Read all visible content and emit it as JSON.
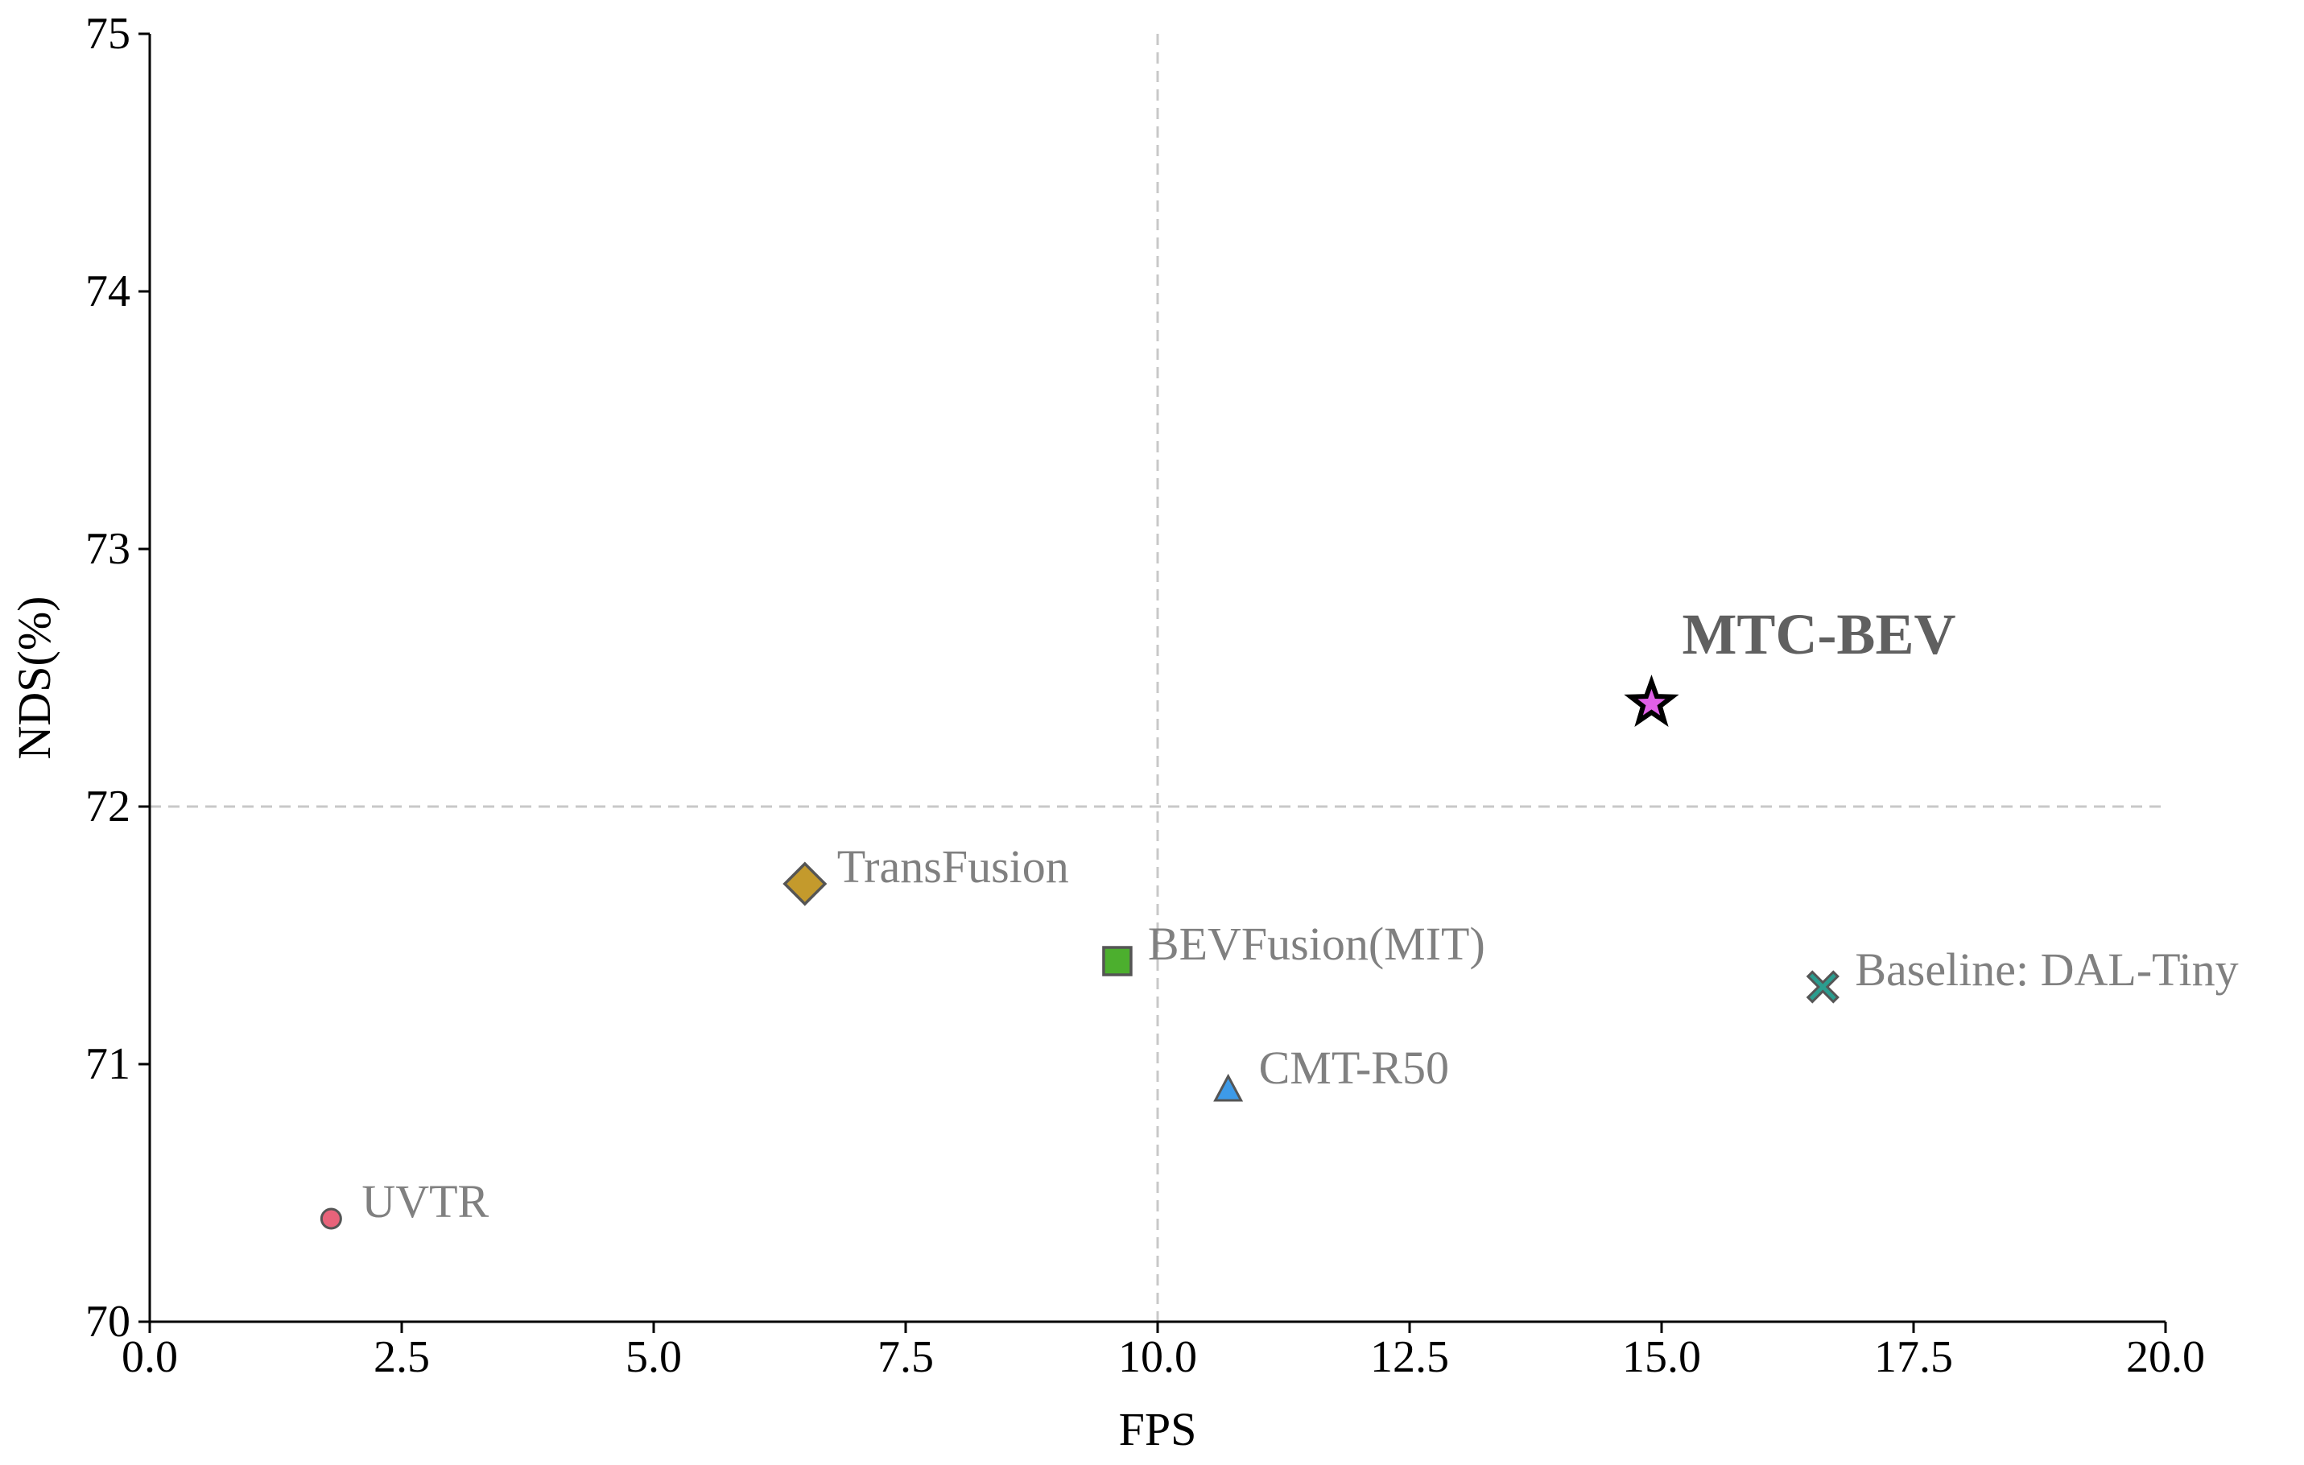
{
  "chart_data": {
    "type": "scatter",
    "title": "",
    "xlabel": "FPS",
    "ylabel": "NDS(%)",
    "xlim": [
      0,
      20
    ],
    "ylim": [
      70,
      75
    ],
    "x_ticks": [
      "0.0",
      "2.5",
      "5.0",
      "7.5",
      "10.0",
      "12.5",
      "15.0",
      "17.5",
      "20.0"
    ],
    "y_ticks": [
      "70",
      "71",
      "72",
      "73",
      "74",
      "75"
    ],
    "reference_lines": {
      "x": 10.0,
      "y": 72.0
    },
    "points": [
      {
        "name": "UVTR",
        "label": "UVTR",
        "x": 1.8,
        "y": 70.4,
        "marker": "circle",
        "color": "#e8637a"
      },
      {
        "name": "TransFusion",
        "label": "TransFusion",
        "x": 6.5,
        "y": 71.7,
        "marker": "diamond",
        "color": "#c49a2c"
      },
      {
        "name": "BEVFusion(MIT)",
        "label": "BEVFusion(MIT)",
        "x": 9.6,
        "y": 71.4,
        "marker": "square",
        "color": "#4caf2e"
      },
      {
        "name": "CMT-R50",
        "label": "CMT-R50",
        "x": 10.7,
        "y": 70.9,
        "marker": "triangle",
        "color": "#3d9ae8"
      },
      {
        "name": "MTC-BEV",
        "label": "MTC-BEV",
        "x": 14.9,
        "y": 72.4,
        "marker": "star",
        "color": "#e060e8",
        "bold": true
      },
      {
        "name": "Baseline: DAL-Tiny",
        "label": "Baseline: DAL-Tiny",
        "x": 16.6,
        "y": 71.3,
        "marker": "x",
        "color": "#2a9d8f"
      }
    ]
  }
}
